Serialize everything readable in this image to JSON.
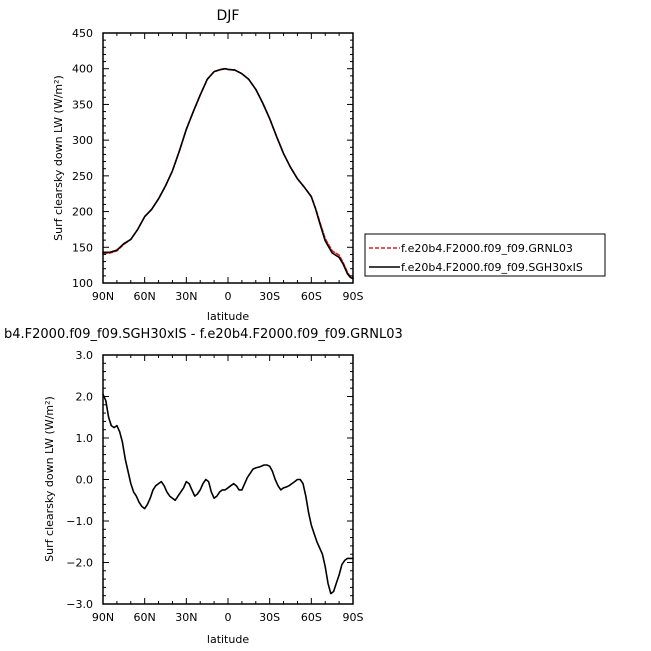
{
  "chart_data": [
    {
      "type": "line",
      "title": "DJF",
      "xlabel": "latitude",
      "ylabel": "Surf clearsky down LW (W/m²)",
      "xlim": [
        90,
        -90
      ],
      "ylim": [
        100,
        450
      ],
      "xticks": [
        90,
        60,
        30,
        0,
        -30,
        -60,
        -90
      ],
      "xtick_labels": [
        "90N",
        "60N",
        "30N",
        "0",
        "30S",
        "60S",
        "90S"
      ],
      "yticks": [
        100,
        150,
        200,
        250,
        300,
        350,
        400,
        450
      ],
      "ytick_labels": [
        "100",
        "150",
        "200",
        "250",
        "300",
        "350",
        "400",
        "450"
      ],
      "legend": {
        "placement": "right-outside"
      },
      "series": [
        {
          "name": "f.e20b4.F2000.f09_f09.GRNL03",
          "color": "#e8191e",
          "dash": "dashed",
          "x": [
            90,
            85,
            80,
            75,
            70,
            65,
            60,
            55,
            50,
            45,
            40,
            35,
            30,
            25,
            20,
            15,
            10,
            5,
            2,
            0,
            -5,
            -10,
            -15,
            -20,
            -25,
            -30,
            -35,
            -40,
            -45,
            -50,
            -55,
            -60,
            -63,
            -66,
            -70,
            -75,
            -80,
            -83,
            -86,
            -88,
            -90
          ],
          "y": [
            141,
            142,
            145,
            154,
            161,
            175,
            193,
            203,
            218,
            236,
            257,
            285,
            315,
            340,
            363,
            385,
            396,
            399,
            400,
            399,
            398,
            393,
            385,
            371,
            352,
            330,
            305,
            281,
            262,
            246,
            234,
            221,
            205,
            186,
            162,
            145,
            139,
            128,
            115,
            109,
            108
          ]
        },
        {
          "name": "f.e20b4.F2000.f09_f09.SGH30xIS",
          "color": "#000000",
          "dash": "solid",
          "x": [
            90,
            85,
            80,
            75,
            70,
            65,
            60,
            55,
            50,
            45,
            40,
            35,
            30,
            25,
            20,
            15,
            10,
            5,
            2,
            0,
            -5,
            -10,
            -15,
            -20,
            -25,
            -30,
            -35,
            -40,
            -45,
            -50,
            -55,
            -60,
            -63,
            -66,
            -70,
            -75,
            -80,
            -83,
            -86,
            -88,
            -90
          ],
          "y": [
            143,
            143,
            146,
            155,
            161,
            175,
            193,
            203,
            218,
            236,
            257,
            285,
            315,
            340,
            363,
            385,
            396,
            399,
            400,
            399,
            398,
            393,
            385,
            371,
            352,
            330,
            305,
            281,
            262,
            246,
            234,
            221,
            204,
            184,
            159,
            142,
            136,
            126,
            113,
            108,
            106
          ]
        }
      ]
    },
    {
      "type": "line",
      "title": "b4.F2000.f09_f09.SGH30xIS - f.e20b4.F2000.f09_f09.GRNL03",
      "xlabel": "latitude",
      "ylabel": "Surf clearsky down LW (W/m²)",
      "xlim": [
        90,
        -90
      ],
      "ylim": [
        -3.0,
        3.0
      ],
      "xticks": [
        90,
        60,
        30,
        0,
        -30,
        -60,
        -90
      ],
      "xtick_labels": [
        "90N",
        "60N",
        "30N",
        "0",
        "30S",
        "60S",
        "90S"
      ],
      "yticks": [
        -3,
        -2,
        -1,
        0,
        1,
        2,
        3
      ],
      "ytick_labels": [
        "−3.0",
        "−2.0",
        "−1.0",
        "0.0",
        "1.0",
        "2.0",
        "3.0"
      ],
      "series": [
        {
          "color": "#000000",
          "dash": "solid",
          "x": [
            90,
            88,
            86,
            84,
            82,
            80,
            78,
            76,
            74,
            72,
            70,
            68,
            66,
            64,
            62,
            60,
            58,
            56,
            54,
            52,
            50,
            48,
            46,
            44,
            42,
            40,
            38,
            36,
            34,
            32,
            30,
            28,
            26,
            24,
            22,
            20,
            18,
            16,
            14,
            12,
            10,
            8,
            6,
            4,
            2,
            0,
            -2,
            -4,
            -6,
            -8,
            -10,
            -12,
            -14,
            -16,
            -18,
            -20,
            -22,
            -24,
            -26,
            -28,
            -30,
            -32,
            -34,
            -36,
            -38,
            -40,
            -42,
            -44,
            -46,
            -48,
            -50,
            -52,
            -54,
            -56,
            -58,
            -60,
            -62,
            -64,
            -66,
            -68,
            -70,
            -72,
            -74,
            -76,
            -78,
            -80,
            -82,
            -84,
            -86,
            -88,
            -90
          ],
          "y": [
            2.05,
            1.9,
            1.5,
            1.3,
            1.25,
            1.3,
            1.15,
            0.9,
            0.5,
            0.2,
            -0.1,
            -0.3,
            -0.4,
            -0.55,
            -0.65,
            -0.7,
            -0.6,
            -0.45,
            -0.25,
            -0.15,
            -0.1,
            -0.05,
            -0.15,
            -0.3,
            -0.4,
            -0.45,
            -0.5,
            -0.4,
            -0.3,
            -0.2,
            -0.05,
            -0.1,
            -0.25,
            -0.4,
            -0.35,
            -0.25,
            -0.1,
            0.0,
            -0.05,
            -0.3,
            -0.45,
            -0.4,
            -0.3,
            -0.25,
            -0.25,
            -0.2,
            -0.15,
            -0.1,
            -0.15,
            -0.25,
            -0.25,
            -0.1,
            0.05,
            0.15,
            0.25,
            0.28,
            0.3,
            0.32,
            0.35,
            0.35,
            0.32,
            0.2,
            0.0,
            -0.15,
            -0.25,
            -0.2,
            -0.18,
            -0.15,
            -0.1,
            -0.05,
            0.0,
            0.0,
            -0.1,
            -0.4,
            -0.8,
            -1.1,
            -1.3,
            -1.5,
            -1.65,
            -1.8,
            -2.1,
            -2.5,
            -2.75,
            -2.7,
            -2.5,
            -2.3,
            -2.05,
            -1.95,
            -1.9,
            -1.9,
            -1.9
          ]
        }
      ]
    }
  ]
}
